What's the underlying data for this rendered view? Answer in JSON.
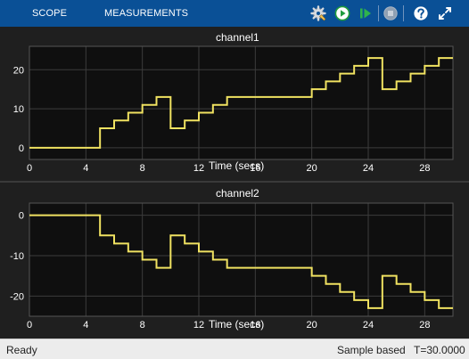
{
  "toolbar": {
    "tabs": [
      "SCOPE",
      "MEASUREMENTS"
    ],
    "buttons": [
      "settings-gear",
      "run",
      "step-forward",
      "stop",
      "help",
      "expand"
    ]
  },
  "colors": {
    "toolbar": "#0a5096",
    "background": "#1f1f1f",
    "axes": "#0f0f0f",
    "grid": "#3c3c3c",
    "signal": "#f0e261",
    "text": "#ffffff",
    "statusbar": "#ececec"
  },
  "chart_data": [
    {
      "type": "line",
      "title": "channel1",
      "xlabel": "Time (secs)",
      "ylabel": "",
      "xlim": [
        0,
        30
      ],
      "ylim": [
        -3,
        26
      ],
      "xticks": [
        0,
        4,
        8,
        12,
        16,
        20,
        24,
        28
      ],
      "yticks": [
        0,
        10,
        20
      ],
      "grid": true,
      "step": true,
      "x": [
        0,
        1,
        2,
        3,
        4,
        5,
        6,
        7,
        8,
        9,
        10,
        11,
        12,
        13,
        14,
        15,
        16,
        17,
        18,
        19,
        20,
        21,
        22,
        23,
        24,
        25,
        26,
        27,
        28,
        29,
        30
      ],
      "values": [
        0,
        0,
        0,
        0,
        0,
        5,
        7,
        9,
        11,
        13,
        5,
        7,
        9,
        11,
        13,
        13,
        13,
        13,
        13,
        13,
        15,
        17,
        19,
        21,
        23,
        15,
        17,
        19,
        21,
        23,
        23
      ]
    },
    {
      "type": "line",
      "title": "channel2",
      "xlabel": "Time (secs)",
      "ylabel": "",
      "xlim": [
        0,
        30
      ],
      "ylim": [
        -25,
        3
      ],
      "xticks": [
        0,
        4,
        8,
        12,
        16,
        20,
        24,
        28
      ],
      "yticks": [
        0,
        -10,
        -20
      ],
      "grid": true,
      "step": true,
      "x": [
        0,
        1,
        2,
        3,
        4,
        5,
        6,
        7,
        8,
        9,
        10,
        11,
        12,
        13,
        14,
        15,
        16,
        17,
        18,
        19,
        20,
        21,
        22,
        23,
        24,
        25,
        26,
        27,
        28,
        29,
        30
      ],
      "values": [
        0,
        0,
        0,
        0,
        0,
        -5,
        -7,
        -9,
        -11,
        -13,
        -5,
        -7,
        -9,
        -11,
        -13,
        -13,
        -13,
        -13,
        -13,
        -13,
        -15,
        -17,
        -19,
        -21,
        -23,
        -15,
        -17,
        -19,
        -21,
        -23,
        -23
      ]
    }
  ],
  "status": {
    "left": "Ready",
    "mode": "Sample based",
    "time": "T=30.0000"
  }
}
